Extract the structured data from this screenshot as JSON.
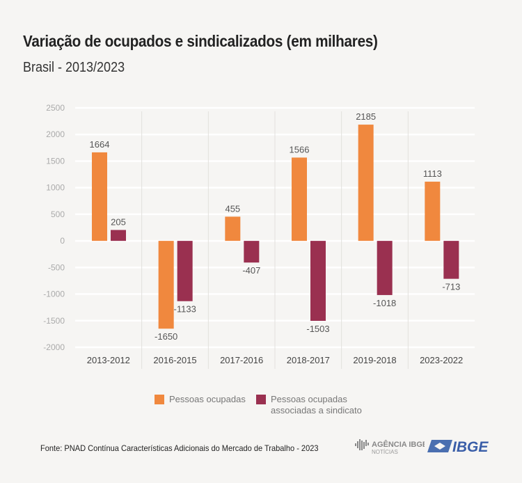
{
  "chart_data": {
    "type": "bar",
    "title": "Variação de ocupados e sindicalizados (em milhares)",
    "subtitle": "Brasil - 2013/2023",
    "categories": [
      "2013-2012",
      "2016-2015",
      "2017-2016",
      "2018-2017",
      "2019-2018",
      "2023-2022"
    ],
    "series": [
      {
        "name": "Pessoas ocupadas",
        "values": [
          1664,
          -1650,
          455,
          1566,
          2185,
          1113
        ],
        "color": "#f0883e"
      },
      {
        "name": "Pessoas ocupadas associadas a sindicato",
        "values": [
          205,
          -1133,
          -407,
          -1503,
          -1018,
          -713
        ],
        "color": "#9a3050"
      }
    ],
    "yticks": [
      2500,
      2000,
      1500,
      1000,
      500,
      0,
      -500,
      -1000,
      -1500,
      -2000
    ],
    "ylim": [
      -2000,
      2500
    ],
    "grid": true,
    "legend": "bottom",
    "xlabel": "",
    "ylabel": ""
  },
  "source": "Fonte: PNAD Contínua Características Adicionais do Mercado de Trabalho - 2023",
  "logos": {
    "agencia": "AGÊNCIA IBGE",
    "agencia_sub": "NOTÍCIAS",
    "ibge": "IBGE"
  }
}
